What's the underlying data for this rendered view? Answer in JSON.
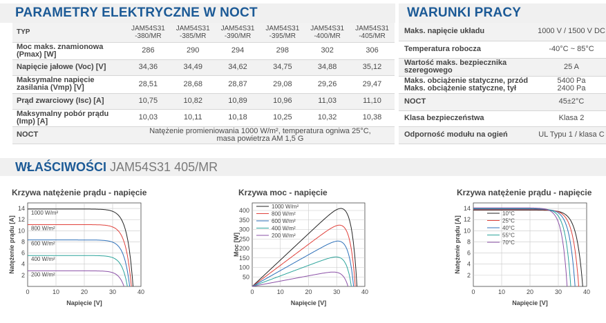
{
  "params": {
    "title": "PARAMETRY ELEKTRYCZNE W NOCT",
    "header": {
      "label": "TYP",
      "models": [
        [
          "JAM54S31",
          "-380/MR"
        ],
        [
          "JAM54S31",
          "-385/MR"
        ],
        [
          "JAM54S31",
          "-390/MR"
        ],
        [
          "JAM54S31",
          "-395/MR"
        ],
        [
          "JAM54S31",
          "-400/MR"
        ],
        [
          "JAM54S31",
          "-405/MR"
        ]
      ]
    },
    "rows": [
      {
        "label": [
          "Moc maks. znamionowa",
          "(Pmax) [W]"
        ],
        "values": [
          "286",
          "290",
          "294",
          "298",
          "302",
          "306"
        ]
      },
      {
        "label": [
          "Napięcie jałowe (Voc) [V]"
        ],
        "values": [
          "34,36",
          "34,49",
          "34,62",
          "34,75",
          "34,88",
          "35,12"
        ]
      },
      {
        "label": [
          "Maksymalne napięcie",
          "zasilania (Vmp) [V]"
        ],
        "values": [
          "28,51",
          "28,68",
          "28,87",
          "29,08",
          "29,26",
          "29,47"
        ]
      },
      {
        "label": [
          "Prąd zwarciowy (Isc) [A]"
        ],
        "values": [
          "10,75",
          "10,82",
          "10,89",
          "10,96",
          "11,03",
          "11,10"
        ]
      },
      {
        "label": [
          "Maksymalny pobór prądu",
          "(Imp) [A]"
        ],
        "values": [
          "10,03",
          "10,11",
          "10,18",
          "10,25",
          "10,32",
          "10,38"
        ]
      }
    ],
    "noct": {
      "label": "NOCT",
      "line1": "Natężenie promieniowania 1000 W/m², temperatura ogniwa 25°C,",
      "line2": "masa powietrza AM 1,5 G"
    }
  },
  "work": {
    "title": "WARUNKI PRACY",
    "rows": [
      {
        "label": [
          "Maks. napięcie układu"
        ],
        "value": [
          "1000 V / 1500 V DC"
        ]
      },
      {
        "label": [
          "Temperatura robocza"
        ],
        "value": [
          "-40°C ~ 85°C"
        ]
      },
      {
        "label": [
          "Wartość maks. bezpiecznika",
          "szeregowego"
        ],
        "value": [
          "25 A"
        ]
      },
      {
        "label": [
          "Maks. obciążenie statyczne, przód",
          "Maks. obciążenie statyczne, tył"
        ],
        "value": [
          "5400 Pa",
          "2400 Pa"
        ]
      },
      {
        "label": [
          "NOCT"
        ],
        "value": [
          "45±2°C"
        ]
      },
      {
        "label": [
          "Klasa bezpieczeństwa"
        ],
        "value": [
          "Klasa 2"
        ]
      },
      {
        "label": [
          "Odporność modułu na ogień"
        ],
        "value": [
          "UL Typu 1 / klasa C"
        ]
      }
    ]
  },
  "features": {
    "bold": "WŁAŚCIWOŚCI",
    "rest": "JAM54S31 405/MR"
  },
  "chart_data": [
    {
      "type": "line",
      "title": "Krzywa natężenie prądu - napięcie",
      "xlabel": "Napięcie [V]",
      "ylabel": "Natężenie prądu [A]",
      "xlim": [
        0,
        40
      ],
      "ylim": [
        0,
        15
      ],
      "xticks": [
        "0",
        "10",
        "20",
        "30",
        "40"
      ],
      "yticks": [
        "2",
        "4",
        "6",
        "8",
        "10",
        "12",
        "14"
      ],
      "grid": true,
      "series": [
        {
          "name": "1000 W/m²",
          "color": "#222222",
          "isc": 13.9,
          "voc": 37.2
        },
        {
          "name": "800 W/m²",
          "color": "#e0403a",
          "isc": 11.1,
          "voc": 36.6
        },
        {
          "name": "600 W/m²",
          "color": "#2c6fb8",
          "isc": 8.35,
          "voc": 36.0
        },
        {
          "name": "400 W/m²",
          "color": "#2aa39a",
          "isc": 5.55,
          "voc": 35.2
        },
        {
          "name": "200 W/m²",
          "color": "#8a4fa6",
          "isc": 2.8,
          "voc": 34.0
        }
      ]
    },
    {
      "type": "line",
      "title": "Krzywa moc - napięcie",
      "xlabel": "Napięcie [V]",
      "ylabel": "Moc [W]",
      "xlim": [
        0,
        40
      ],
      "ylim": [
        0,
        440
      ],
      "xticks": [
        "0",
        "10",
        "20",
        "30",
        "40"
      ],
      "yticks": [
        "50",
        "100",
        "150",
        "200",
        "250",
        "300",
        "350",
        "400"
      ],
      "grid": true,
      "series": [
        {
          "name": "1000 W/m²",
          "color": "#222222",
          "isc": 13.9,
          "voc": 37.2
        },
        {
          "name": "800 W/m²",
          "color": "#e0403a",
          "isc": 11.1,
          "voc": 36.6
        },
        {
          "name": "600 W/m²",
          "color": "#2c6fb8",
          "isc": 8.35,
          "voc": 36.0
        },
        {
          "name": "400 W/m²",
          "color": "#2aa39a",
          "isc": 5.55,
          "voc": 35.2
        },
        {
          "name": "200 W/m²",
          "color": "#8a4fa6",
          "isc": 2.8,
          "voc": 34.0
        }
      ]
    },
    {
      "type": "line",
      "title": "Krzywa natężenie prądu - napięcie",
      "xlabel": "Napięcie [V]",
      "ylabel": "Natężenie prądu [A]",
      "xlim": [
        0,
        40
      ],
      "ylim": [
        0,
        15
      ],
      "xticks": [
        "0",
        "10",
        "20",
        "30",
        "40"
      ],
      "yticks": [
        "2",
        "4",
        "6",
        "8",
        "10",
        "12",
        "14"
      ],
      "grid": true,
      "series": [
        {
          "name": "10°C",
          "color": "#222222",
          "isc": 13.7,
          "voc": 38.6
        },
        {
          "name": "25°C",
          "color": "#e0403a",
          "isc": 13.8,
          "voc": 37.2
        },
        {
          "name": "40°C",
          "color": "#2c6fb8",
          "isc": 13.9,
          "voc": 35.9
        },
        {
          "name": "55°C",
          "color": "#2aa39a",
          "isc": 14.0,
          "voc": 34.4
        },
        {
          "name": "70°C",
          "color": "#8a4fa6",
          "isc": 14.1,
          "voc": 33.1
        }
      ]
    }
  ]
}
